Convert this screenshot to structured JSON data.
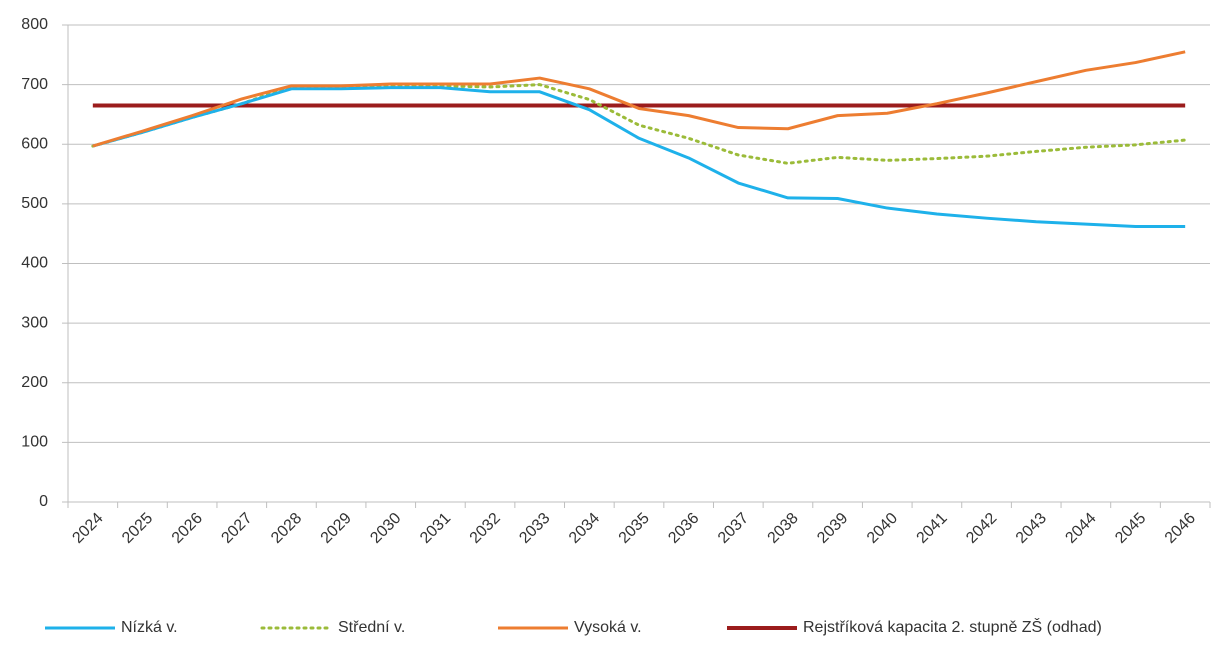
{
  "chart_data": {
    "type": "line",
    "categories": [
      "2024",
      "2025",
      "2026",
      "2027",
      "2028",
      "2029",
      "2030",
      "2031",
      "2032",
      "2033",
      "2034",
      "2035",
      "2036",
      "2037",
      "2038",
      "2039",
      "2040",
      "2041",
      "2042",
      "2043",
      "2044",
      "2045",
      "2046"
    ],
    "series": [
      {
        "name": "Nízká v.",
        "color": "#1eb1ea",
        "dashed": false,
        "values": [
          597,
          620,
          645,
          668,
          693,
          693,
          695,
          695,
          688,
          688,
          658,
          610,
          577,
          535,
          510,
          509,
          493,
          483,
          476,
          470,
          466,
          462,
          462
        ]
      },
      {
        "name": "Střední v.",
        "color": "#9bbb39",
        "dashed": true,
        "values": [
          597,
          620,
          645,
          668,
          697,
          697,
          698,
          698,
          696,
          700,
          675,
          632,
          610,
          582,
          568,
          578,
          573,
          576,
          580,
          588,
          595,
          599,
          607
        ]
      },
      {
        "name": "Vysoká v.",
        "color": "#ed7d31",
        "dashed": false,
        "values": [
          597,
          622,
          648,
          676,
          698,
          698,
          701,
          701,
          701,
          711,
          693,
          660,
          648,
          628,
          626,
          648,
          652,
          668,
          686,
          705,
          724,
          737,
          755
        ]
      },
      {
        "name": "Rejstříková kapacita 2. stupně ZŠ (odhad)",
        "color": "#9b1c1c",
        "dashed": false,
        "values": [
          665,
          665,
          665,
          665,
          665,
          665,
          665,
          665,
          665,
          665,
          665,
          665,
          665,
          665,
          665,
          665,
          665,
          665,
          665,
          665,
          665,
          665,
          665
        ]
      }
    ],
    "ylim": [
      0,
      800
    ],
    "yticks": [
      0,
      100,
      200,
      300,
      400,
      500,
      600,
      700,
      800
    ],
    "grid": true,
    "legend": "bottom"
  }
}
